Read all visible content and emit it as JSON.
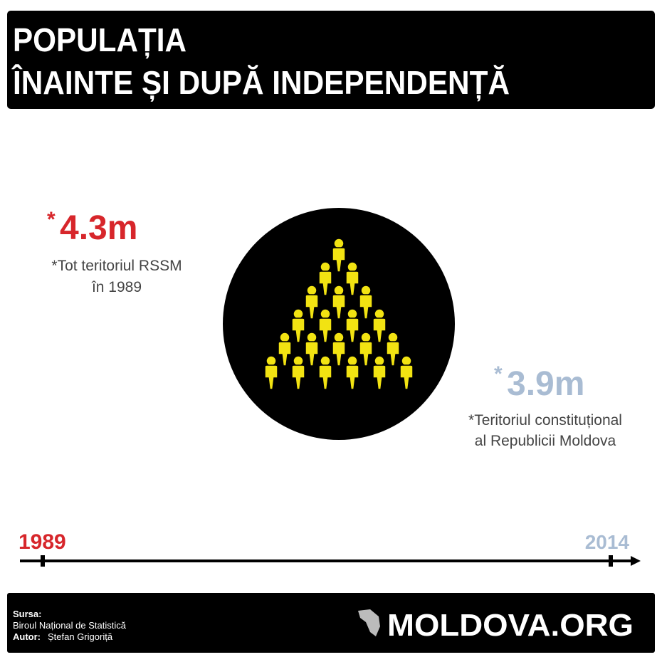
{
  "header": {
    "title": [
      "POPULAȚIA",
      "ÎNAINTE ȘI DUPĂ INDEPENDENȚĂ"
    ]
  },
  "left": {
    "asterisk": "*",
    "value": "4.3m",
    "note": [
      "*Tot teritoriul RSSM",
      "în 1989"
    ]
  },
  "right": {
    "asterisk": "*",
    "value": "3.9m",
    "note": [
      "*Teritoriul constituțional",
      "al Republicii Moldova"
    ]
  },
  "timeline": {
    "start": "1989",
    "end": "2014"
  },
  "footer": {
    "source_label": "Sursa:",
    "source": "Biroul Național de Statistică",
    "author_label": "Autor:",
    "author": "Ștefan Grigoriță",
    "logo": "MOLDOVA.ORG"
  }
}
